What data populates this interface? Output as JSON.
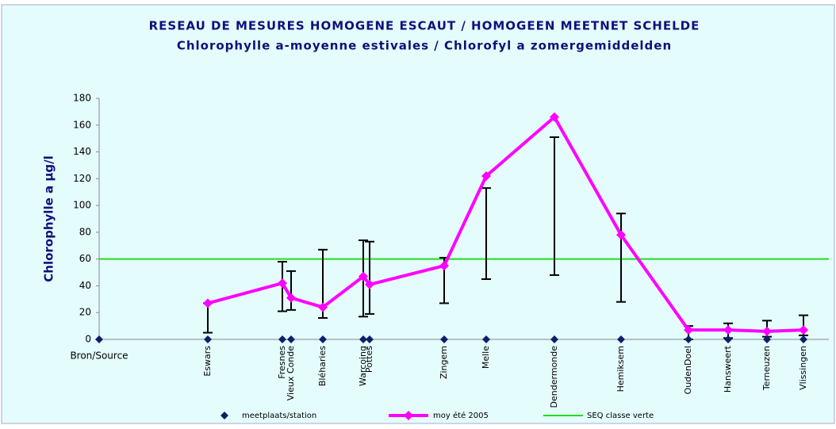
{
  "chart_data": {
    "type": "line",
    "title": "RESEAU DE MESURES HOMOGENE ESCAUT / HOMOGEEN MEETNET SCHELDE",
    "subtitle": "Chlorophylle a-moyenne estivales / Chlorofyl a zomergemiddelden",
    "y_label": "Chlorophylle a µg/l",
    "categories": [
      "Bron/Source",
      "Eswars",
      "Fresnes",
      "Vieux Conde",
      "Bléharies",
      "Warcoing",
      "Pottes",
      "Zingem",
      "Melle",
      "Dendermonde",
      "Hemiksem",
      "OudenDoel",
      "Hansweert",
      "Terneuzen",
      "Vlissingen"
    ],
    "x": [
      0,
      137,
      231,
      242,
      282,
      333,
      341,
      435,
      488,
      574,
      658,
      743,
      793,
      842,
      888
    ],
    "xlim": [
      0,
      920
    ],
    "ylim": [
      0,
      180
    ],
    "yticks": [
      0,
      20,
      40,
      60,
      80,
      100,
      120,
      140,
      160,
      180
    ],
    "series": [
      {
        "name": "meetplaats/station",
        "color": "#0d1f6b",
        "values": [
          0,
          0,
          0,
          0,
          0,
          0,
          0,
          0,
          0,
          0,
          0,
          0,
          0,
          0,
          0
        ]
      },
      {
        "name": "moy été 2005",
        "color": "#ff00ff",
        "values": [
          null,
          27,
          42,
          31,
          24,
          47,
          41,
          55,
          122,
          166,
          78,
          7,
          7,
          6,
          7
        ],
        "low": [
          null,
          5,
          21,
          22,
          16,
          17,
          19,
          27,
          45,
          48,
          28,
          0,
          1,
          2,
          3
        ],
        "high": [
          null,
          27,
          58,
          51,
          67,
          74,
          73,
          61,
          113,
          151,
          94,
          10,
          12,
          14,
          18
        ]
      }
    ],
    "threshold": {
      "name": "SEQ classe verte",
      "value": 60,
      "color": "#22dd22"
    }
  }
}
